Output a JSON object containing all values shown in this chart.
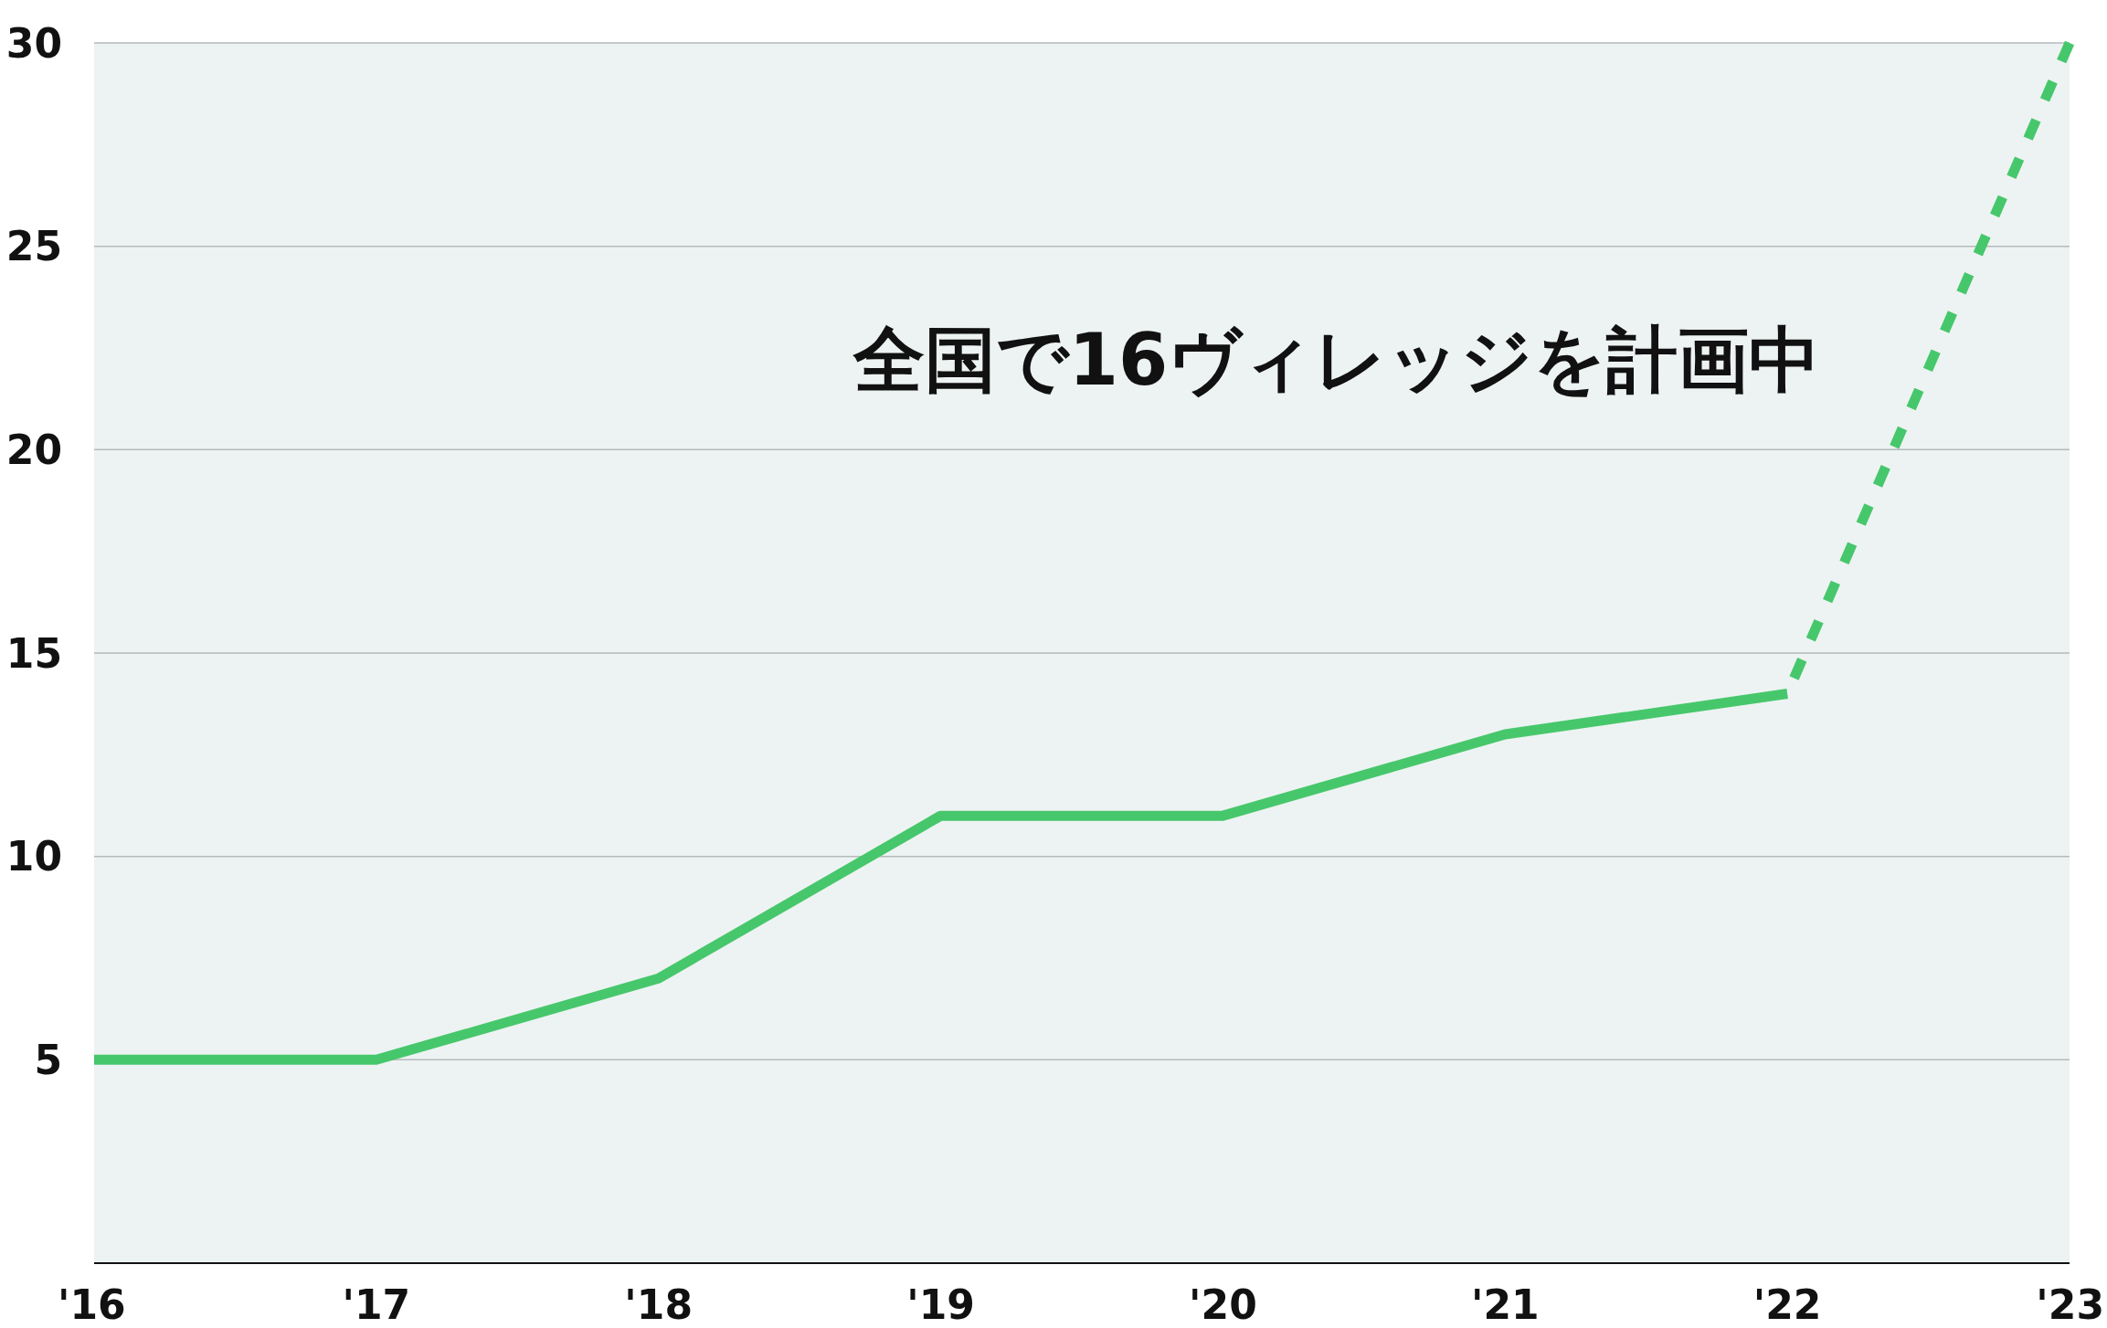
{
  "chart_data": {
    "type": "line",
    "categories": [
      "'16",
      "'17",
      "'18",
      "'19",
      "'20",
      "'21",
      "'22",
      "'23"
    ],
    "series": [
      {
        "color": "#47c76c",
        "line_style": "solid",
        "values": [
          5,
          5,
          7,
          11,
          11,
          13,
          14,
          null
        ]
      },
      {
        "color": "#47c76c",
        "line_style": "dashed",
        "values": [
          null,
          null,
          null,
          null,
          null,
          null,
          14,
          30
        ]
      }
    ],
    "ylim": [
      0,
      30
    ],
    "yticks": [
      5,
      10,
      15,
      20,
      25,
      30
    ],
    "grid": "y",
    "annotations": [
      "全国で16ヴィレッジを計画中"
    ]
  }
}
